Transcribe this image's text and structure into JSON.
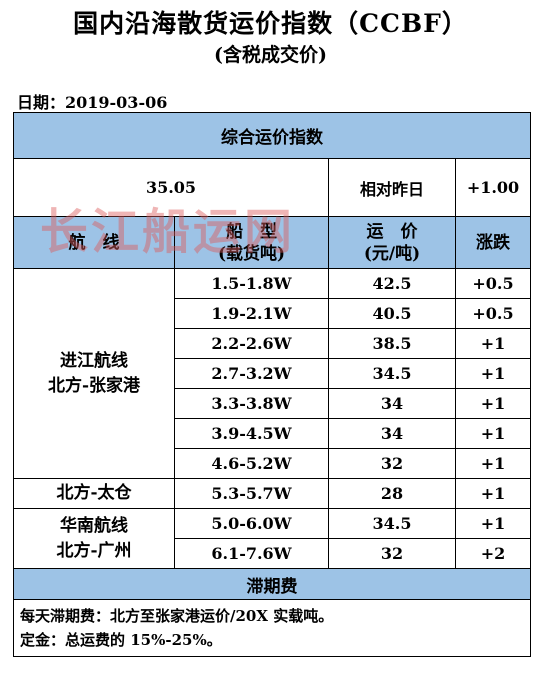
{
  "title": "国内沿海散货运价指数（CCBF）",
  "subtitle": "(含税成交价)",
  "date_label": "日期：2019-03-06",
  "section_title": "综合运价指数",
  "index": {
    "value": "35.05",
    "compare_label": "相对昨日",
    "change": "+1.00"
  },
  "watermark": "长江船运网",
  "headers": {
    "route": "航　线",
    "ship_type_line1": "船　型",
    "ship_type_line2": "(载货吨)",
    "price_line1": "运　价",
    "price_line2": "(元/吨)",
    "change": "涨跌"
  },
  "groups": [
    {
      "route_line1": "进江航线",
      "route_line2": "北方-张家港",
      "rows": [
        {
          "ship": "1.5-1.8W",
          "price": "42.5",
          "change": "+0.5"
        },
        {
          "ship": "1.9-2.1W",
          "price": "40.5",
          "change": "+0.5"
        },
        {
          "ship": "2.2-2.6W",
          "price": "38.5",
          "change": "+1"
        },
        {
          "ship": "2.7-3.2W",
          "price": "34.5",
          "change": "+1"
        },
        {
          "ship": "3.3-3.8W",
          "price": "34",
          "change": "+1"
        },
        {
          "ship": "3.9-4.5W",
          "price": "34",
          "change": "+1"
        },
        {
          "ship": "4.6-5.2W",
          "price": "32",
          "change": "+1"
        }
      ]
    },
    {
      "route_line1": "北方-太仓",
      "rows": [
        {
          "ship": "5.3-5.7W",
          "price": "28",
          "change": "+1"
        }
      ]
    },
    {
      "route_line1": "华南航线",
      "route_line2": "北方-广州",
      "rows": [
        {
          "ship": "5.0-6.0W",
          "price": "34.5",
          "change": "+1"
        },
        {
          "ship": "6.1-7.6W",
          "price": "32",
          "change": "+2"
        }
      ]
    }
  ],
  "demurrage_title": "滞期费",
  "notes": [
    "每天滞期费：北方至张家港运价/20X 实载吨。",
    "定金：总运费的 15%-25%。"
  ],
  "colors": {
    "header_blue": "#9DC3E6",
    "watermark": "#DC5A5A"
  }
}
